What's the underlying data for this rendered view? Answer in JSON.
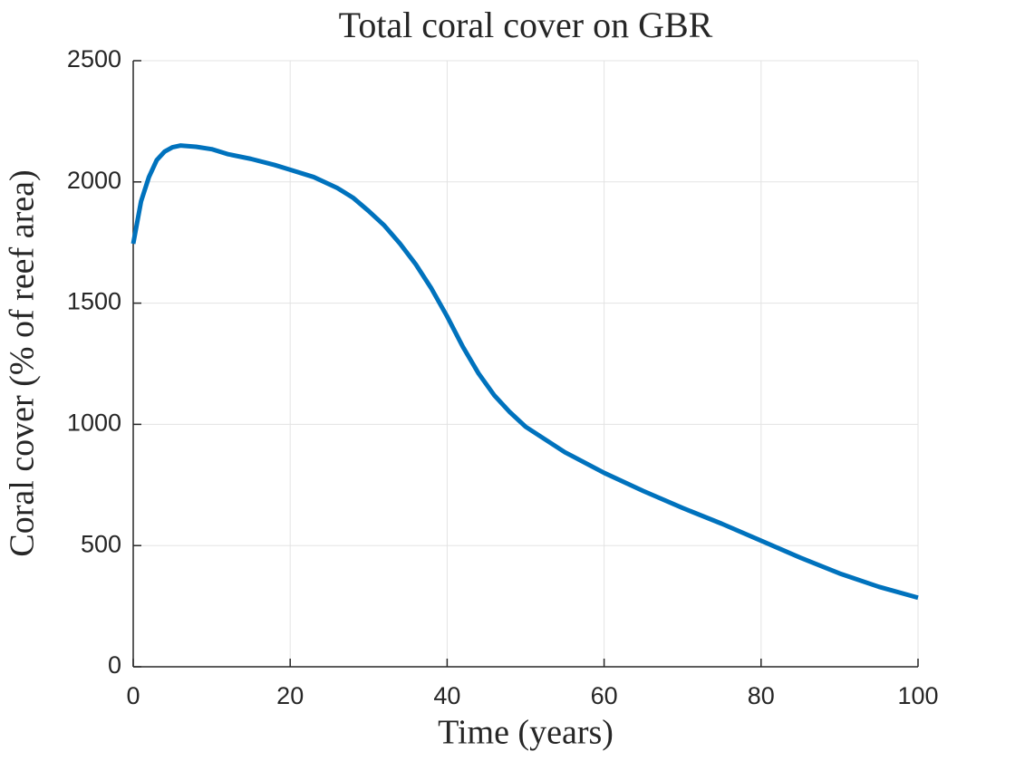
{
  "chart_data": {
    "type": "line",
    "title": "Total coral cover on GBR",
    "xlabel": "Time (years)",
    "ylabel": "Coral cover (% of reef area)",
    "x": [
      0,
      1,
      2,
      3,
      4,
      5,
      6,
      8,
      10,
      12,
      15,
      18,
      20,
      23,
      26,
      28,
      30,
      32,
      34,
      36,
      38,
      40,
      42,
      44,
      46,
      48,
      50,
      55,
      60,
      65,
      70,
      75,
      80,
      85,
      90,
      95,
      100
    ],
    "series": [
      {
        "name": "Total coral cover",
        "color": "#0072bd",
        "values": [
          1745,
          1920,
          2020,
          2090,
          2125,
          2143,
          2150,
          2145,
          2135,
          2115,
          2095,
          2070,
          2050,
          2020,
          1975,
          1935,
          1880,
          1820,
          1745,
          1660,
          1560,
          1445,
          1320,
          1210,
          1120,
          1050,
          990,
          885,
          800,
          725,
          655,
          590,
          520,
          450,
          385,
          330,
          285
        ]
      }
    ],
    "xlim": [
      0,
      100
    ],
    "xticks": [
      0,
      20,
      40,
      60,
      80,
      100
    ],
    "ylim": [
      0,
      2500
    ],
    "yticks": [
      0,
      500,
      1000,
      1500,
      2000,
      2500
    ],
    "grid": true
  }
}
